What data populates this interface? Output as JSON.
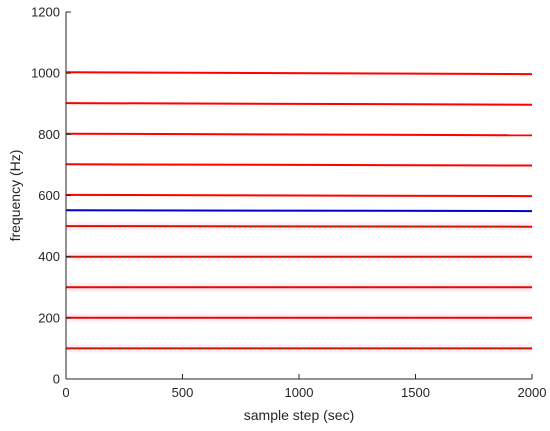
{
  "chart_data": {
    "type": "line",
    "xlabel": "sample step (sec)",
    "ylabel": "frequency (Hz)",
    "xlim": [
      0,
      2000
    ],
    "ylim": [
      0,
      1200
    ],
    "xticks": [
      0,
      500,
      1000,
      1500,
      2000
    ],
    "yticks": [
      0,
      200,
      400,
      600,
      800,
      1000,
      1200
    ],
    "grid": false,
    "colors": {
      "red": "#ff0000",
      "blue": "#0000cc",
      "dark_green": "#2e5e00",
      "pink_band": "#ffd9ec"
    },
    "series": [
      {
        "x": [
          0,
          2000
        ],
        "y": [
          100,
          100
        ],
        "color": "#ff0000",
        "overlay_color": "#2e5e00"
      },
      {
        "x": [
          0,
          2000
        ],
        "y": [
          200,
          200
        ],
        "color": "#ff0000",
        "overlay_color": "#2e5e00"
      },
      {
        "x": [
          0,
          2000
        ],
        "y": [
          300,
          300
        ],
        "color": "#ff0000",
        "overlay_color": "#2e5e00"
      },
      {
        "x": [
          0,
          2000
        ],
        "y": [
          400,
          400
        ],
        "color": "#ff0000",
        "overlay_color": "#2e5e00"
      },
      {
        "x": [
          0,
          2000
        ],
        "y": [
          500,
          498
        ],
        "color": "#ff0000",
        "overlay_color": "#2e5e00"
      },
      {
        "x": [
          0,
          2000
        ],
        "y": [
          552,
          549
        ],
        "color": "#0000cc"
      },
      {
        "x": [
          0,
          2000
        ],
        "y": [
          602,
          598
        ],
        "color": "#ff0000"
      },
      {
        "x": [
          0,
          2000
        ],
        "y": [
          702,
          698
        ],
        "color": "#ff0000"
      },
      {
        "x": [
          0,
          2000
        ],
        "y": [
          802,
          797
        ],
        "color": "#ff0000"
      },
      {
        "x": [
          0,
          2000
        ],
        "y": [
          902,
          897
        ],
        "color": "#ff0000"
      },
      {
        "x": [
          0,
          2000
        ],
        "y": [
          1003,
          997
        ],
        "color": "#ff0000"
      }
    ]
  }
}
